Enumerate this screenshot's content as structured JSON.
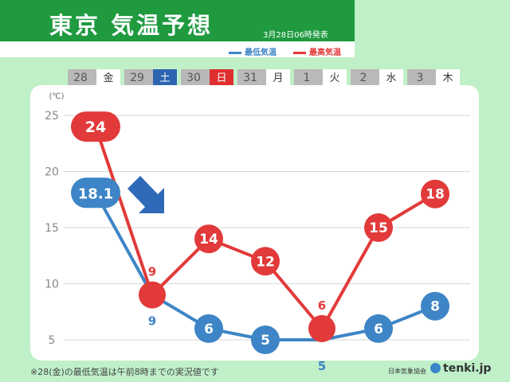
{
  "header": {
    "title": "東京 気温予想",
    "issued": "3月28日06時発表"
  },
  "legend": {
    "min_label": "最低気温",
    "max_label": "最高気温",
    "min_color": "#3d85c6",
    "max_color": "#e23a3a"
  },
  "days": [
    {
      "num": "28",
      "weekday": "金",
      "kind": "weekday"
    },
    {
      "num": "29",
      "weekday": "土",
      "kind": "saturday"
    },
    {
      "num": "30",
      "weekday": "日",
      "kind": "sunday"
    },
    {
      "num": "31",
      "weekday": "月",
      "kind": "weekday"
    },
    {
      "num": "1",
      "weekday": "火",
      "kind": "weekday"
    },
    {
      "num": "2",
      "weekday": "水",
      "kind": "weekday"
    },
    {
      "num": "3",
      "weekday": "木",
      "kind": "weekday"
    }
  ],
  "chart_data": {
    "type": "line",
    "unit": "(℃)",
    "categories": [
      "28",
      "29",
      "30",
      "31",
      "1",
      "2",
      "3"
    ],
    "yticks": [
      5,
      10,
      15,
      20,
      25
    ],
    "ylim": [
      3,
      27
    ],
    "grid": true,
    "series": [
      {
        "name": "最高気温",
        "color": "#e23a3a",
        "values": [
          24,
          9,
          14,
          12,
          6,
          15,
          18
        ],
        "labels": [
          "24",
          "9",
          "14",
          "12",
          "6",
          "15",
          "18"
        ]
      },
      {
        "name": "最低気温",
        "color": "#3d85c6",
        "values": [
          18.1,
          9,
          6,
          5,
          5,
          6,
          8
        ],
        "labels": [
          "18.1",
          "9",
          "6",
          "5",
          "5",
          "6",
          "8"
        ]
      }
    ],
    "annotation": "arrow-down"
  },
  "footer": {
    "note": "※28(金)の最低気温は午前8時までの実況値です",
    "credit": "日本気象協会",
    "brand": "tenki.jp"
  }
}
